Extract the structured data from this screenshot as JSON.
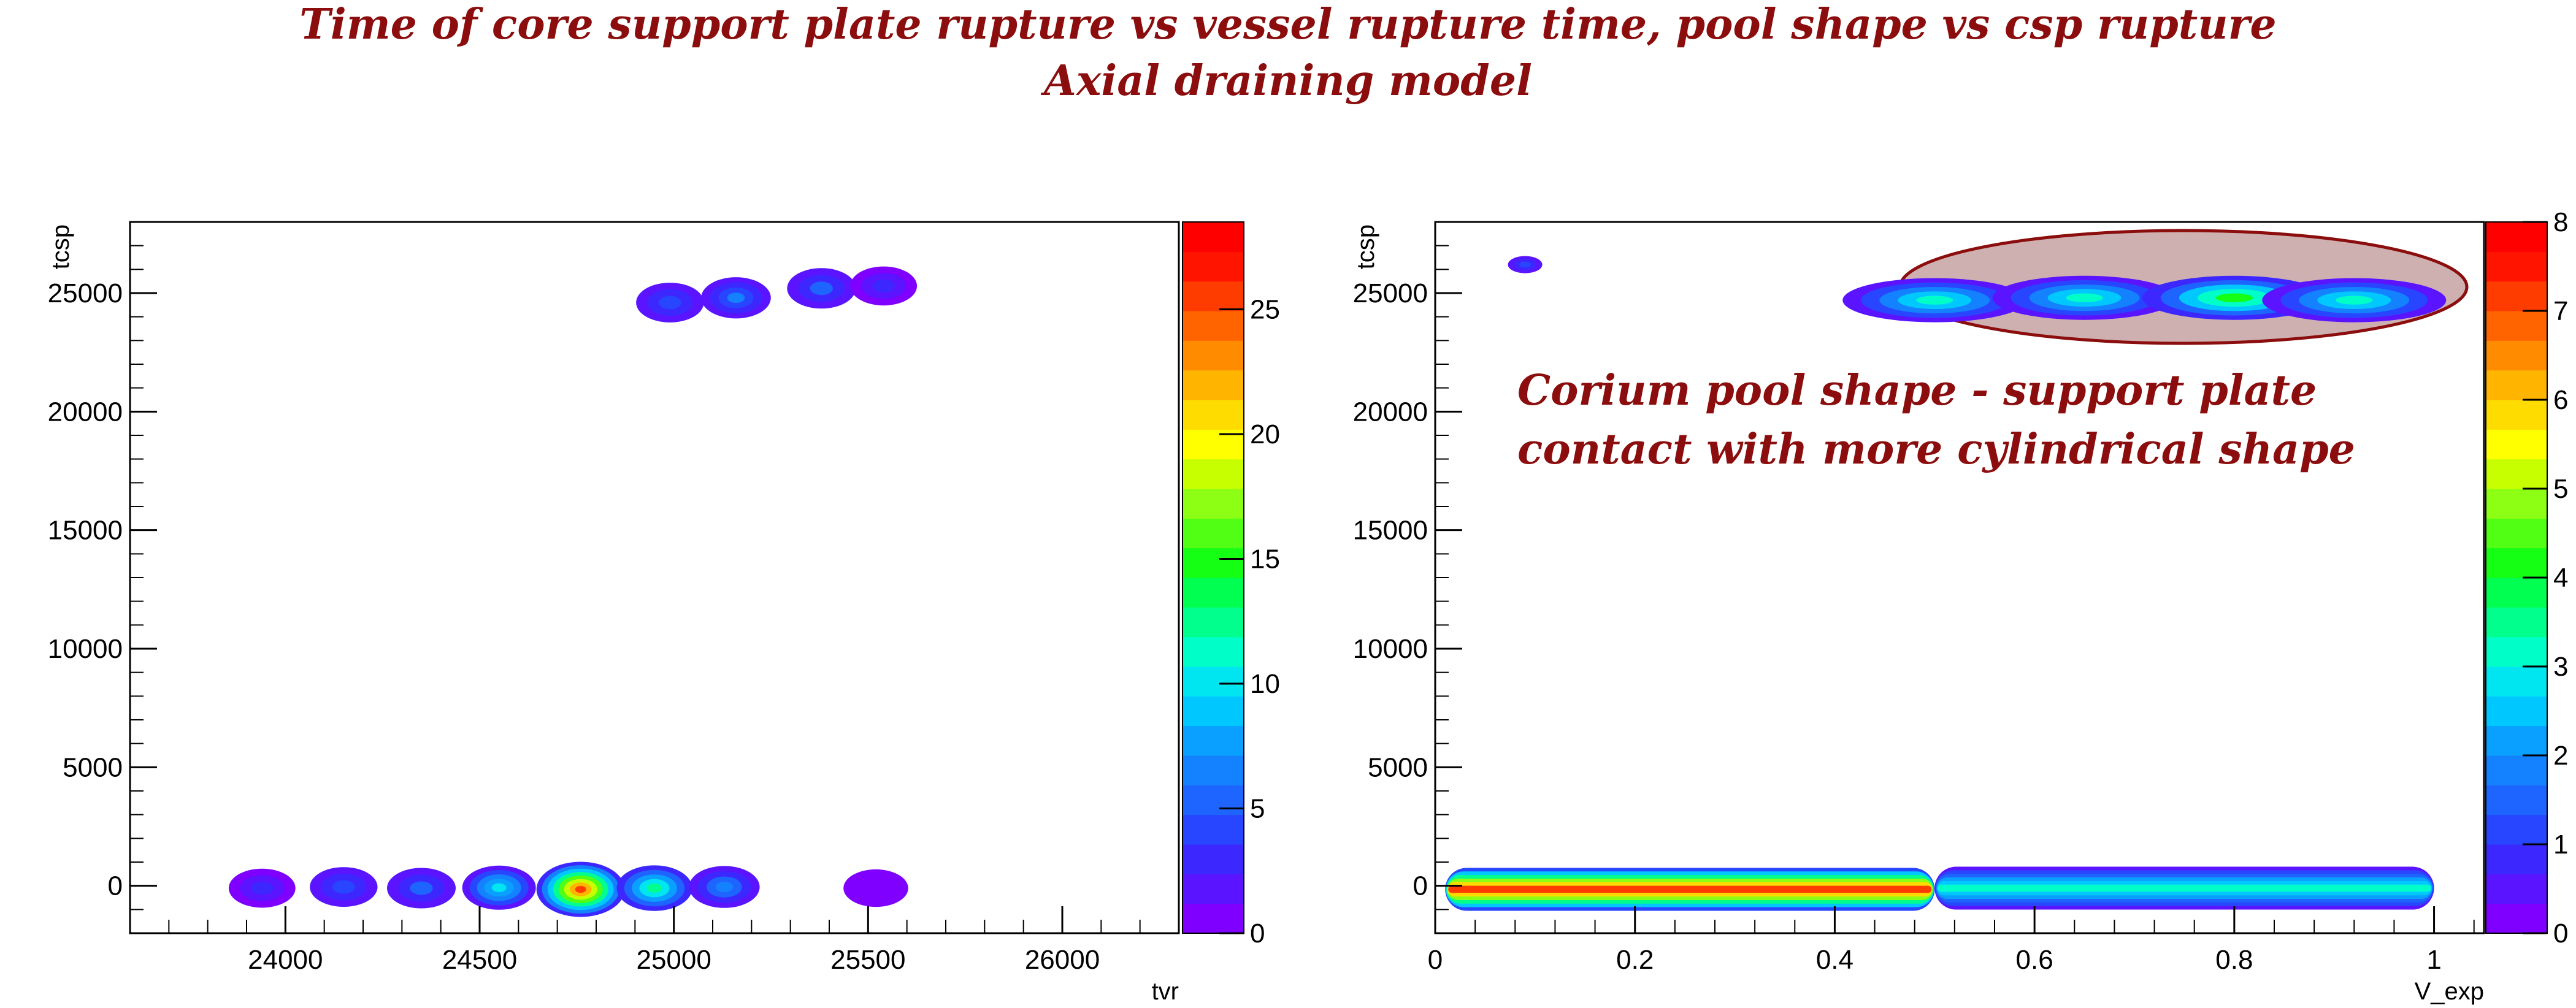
{
  "title": {
    "line1": "Time of core support plate rupture vs vessel rupture time, pool shape  vs csp rupture",
    "line2": "Axial draining model"
  },
  "palette": [
    "#8000ff",
    "#5a14ff",
    "#3c28ff",
    "#2846ff",
    "#1e64ff",
    "#1482ff",
    "#0aa0ff",
    "#00c8ff",
    "#00e6f0",
    "#00ffc8",
    "#00ff8c",
    "#00ff50",
    "#14ff14",
    "#50ff14",
    "#8cff14",
    "#c8ff00",
    "#ffff00",
    "#ffdc00",
    "#ffb400",
    "#ff8c00",
    "#ff6400",
    "#ff3c00",
    "#ff1400",
    "#ff0000"
  ],
  "chart_data": [
    {
      "type": "heatmap",
      "xlabel": "tvr",
      "ylabel": "tcsp",
      "xlim": [
        23600,
        26300
      ],
      "ylim": [
        -2000,
        28000
      ],
      "xticks": [
        24000,
        24500,
        25000,
        25500,
        26000
      ],
      "yticks": [
        0,
        5000,
        10000,
        15000,
        20000,
        25000
      ],
      "zlim": [
        0,
        28.5
      ],
      "zticks": [
        0,
        5,
        10,
        15,
        20,
        25
      ],
      "blobs": [
        {
          "x": 23940,
          "y": -100,
          "value": 3
        },
        {
          "x": 24150,
          "y": -50,
          "value": 4
        },
        {
          "x": 24350,
          "y": -100,
          "value": 5
        },
        {
          "x": 24550,
          "y": -80,
          "value": 10
        },
        {
          "x": 24760,
          "y": -150,
          "value": 25
        },
        {
          "x": 24950,
          "y": -100,
          "value": 12
        },
        {
          "x": 25130,
          "y": -50,
          "value": 7
        },
        {
          "x": 25520,
          "y": -100,
          "value": 1
        },
        {
          "x": 24990,
          "y": 24600,
          "value": 4
        },
        {
          "x": 25160,
          "y": 24800,
          "value": 6
        },
        {
          "x": 25380,
          "y": 25200,
          "value": 5
        },
        {
          "x": 25540,
          "y": 25300,
          "value": 3
        }
      ]
    },
    {
      "type": "heatmap",
      "xlabel": "V_exp",
      "ylabel": "tcsp",
      "xlim": [
        0,
        1.05
      ],
      "ylim": [
        -2000,
        28000
      ],
      "xticks": [
        0,
        0.2,
        0.4,
        0.6,
        0.8,
        1
      ],
      "yticks": [
        0,
        5000,
        10000,
        15000,
        20000,
        25000
      ],
      "zlim": [
        0,
        8
      ],
      "zticks": [
        0,
        1,
        2,
        3,
        4,
        5,
        6,
        7,
        8
      ],
      "bands": [
        {
          "x_start": 0.01,
          "x_end": 0.5,
          "y": -150,
          "value": 7
        },
        {
          "x_start": 0.5,
          "x_end": 1.0,
          "y": -100,
          "value": 3
        }
      ],
      "blobs": [
        {
          "x": 0.09,
          "y": 26200,
          "value": 1
        },
        {
          "x": 0.5,
          "y": 24700,
          "value": 3
        },
        {
          "x": 0.65,
          "y": 24800,
          "value": 3
        },
        {
          "x": 0.8,
          "y": 24800,
          "value": 4
        },
        {
          "x": 0.92,
          "y": 24700,
          "value": 3
        }
      ],
      "annotation": "Corium pool shape -  support plate\ncontact with more cylindrical shape"
    }
  ]
}
